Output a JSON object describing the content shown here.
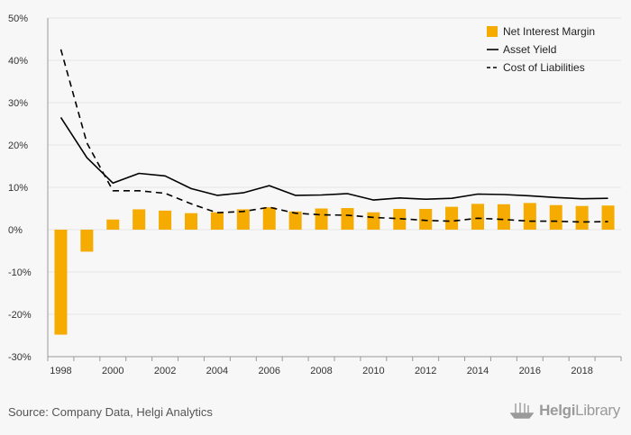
{
  "colors": {
    "bar": "#f5ab00",
    "asset_line": "#000000",
    "liab_line": "#000000",
    "grid": "#e6e6e6",
    "axis": "#999999",
    "background": "#f7f7f7"
  },
  "source_text": "Source: Company Data, Helgi Analytics",
  "logo": {
    "text_bold": "Helgi",
    "text_light": "Library",
    "icon": "ship-icon"
  },
  "chart_data": {
    "type": "bar",
    "x": [
      1998,
      1999,
      2000,
      2001,
      2002,
      2003,
      2004,
      2005,
      2006,
      2007,
      2008,
      2009,
      2010,
      2011,
      2012,
      2013,
      2014,
      2015,
      2016,
      2017,
      2018,
      2019
    ],
    "x_tick_labels": [
      "1998",
      "2000",
      "2002",
      "2004",
      "2006",
      "2008",
      "2010",
      "2012",
      "2014",
      "2016",
      "2018"
    ],
    "y_ticks": [
      -30,
      -20,
      -10,
      0,
      10,
      20,
      30,
      40,
      50
    ],
    "y_tick_labels": [
      "-30%",
      "-20%",
      "-10%",
      "0%",
      "10%",
      "20%",
      "30%",
      "40%",
      "50%"
    ],
    "ylim": [
      -30,
      50
    ],
    "title": "",
    "xlabel": "",
    "ylabel": "",
    "grid": "horizontal",
    "legend_position": "top-right",
    "series": [
      {
        "name": "Net Interest Margin",
        "type": "bar",
        "values": [
          -24.8,
          -5.2,
          2.4,
          4.8,
          4.5,
          3.9,
          4.1,
          4.8,
          5.3,
          4.3,
          5.0,
          5.1,
          4.1,
          4.9,
          4.9,
          5.4,
          6.1,
          6.0,
          6.3,
          5.8,
          5.6,
          5.7
        ]
      },
      {
        "name": "Asset Yield",
        "type": "line",
        "dash": "solid",
        "values": [
          26.5,
          17.0,
          11.0,
          13.3,
          12.7,
          9.7,
          8.1,
          8.7,
          10.4,
          8.1,
          8.2,
          8.5,
          7.0,
          7.5,
          7.2,
          7.4,
          8.4,
          8.3,
          8.0,
          7.6,
          7.3,
          7.4
        ]
      },
      {
        "name": "Cost of Liabilities",
        "type": "line",
        "dash": "dashed",
        "values": [
          42.6,
          20.5,
          9.2,
          9.2,
          8.6,
          6.1,
          4.0,
          4.3,
          5.3,
          3.9,
          3.5,
          3.4,
          2.9,
          2.6,
          2.2,
          2.0,
          2.7,
          2.4,
          2.0,
          2.0,
          1.8,
          1.9
        ]
      }
    ]
  }
}
